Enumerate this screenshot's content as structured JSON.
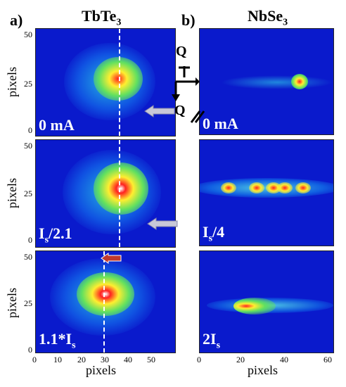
{
  "left": {
    "panel_letter": "a)",
    "title_main": "TbTe",
    "title_sub": "3",
    "y_label": "pixels",
    "x_label": "pixels",
    "x_ticks": [
      "0",
      "10",
      "20",
      "30",
      "40",
      "50"
    ],
    "y_ticks": [
      "50",
      "25",
      "0"
    ],
    "panels": [
      {
        "current_main": "0 mA",
        "current_sub": ""
      },
      {
        "current_main": "I",
        "current_sub": "s",
        "current_tail": "/2.1"
      },
      {
        "current_main": "1.1*I",
        "current_sub": "s",
        "current_tail": ""
      }
    ]
  },
  "right": {
    "panel_letter": "b)",
    "title_main": "NbSe",
    "title_sub": "3",
    "x_label": "pixels",
    "x_ticks": [
      "0",
      "20",
      "40",
      "60"
    ],
    "q_perp": "Q",
    "q_par": "Q",
    "panels": [
      {
        "current_main": "0 mA",
        "current_sub": "",
        "current_tail": ""
      },
      {
        "current_main": "I",
        "current_sub": "s",
        "current_tail": "/4"
      },
      {
        "current_main": "2I",
        "current_sub": "s",
        "current_tail": ""
      }
    ]
  },
  "colors": {
    "background": "#0a1acc",
    "arrow_gray": "#c8c8d8",
    "arrow_red": "#c0392b"
  }
}
